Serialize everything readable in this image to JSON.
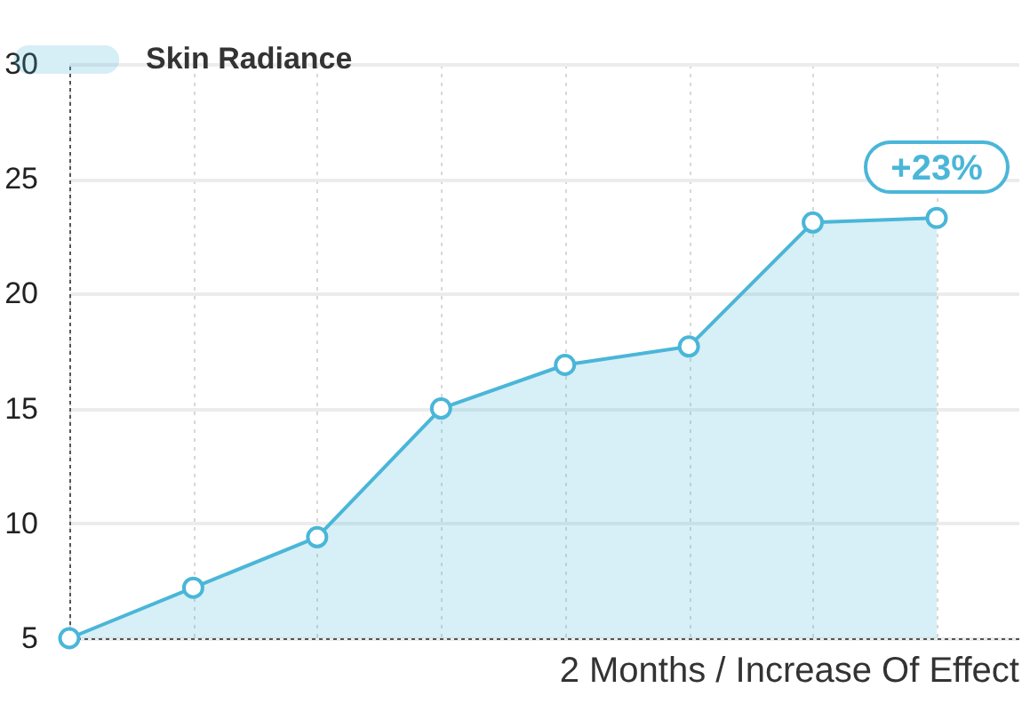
{
  "chart_data": {
    "type": "area",
    "xlabel": "2 Months / Increase Of Effect",
    "categories": [
      null,
      null,
      null,
      null,
      null,
      null,
      null,
      null
    ],
    "series": [
      {
        "name": "Skin Radiance",
        "color": "#4ab6d8",
        "values": [
          5,
          7.2,
          9.4,
          15.0,
          16.9,
          17.7,
          23.1,
          23.3
        ]
      }
    ],
    "annotations": [
      "+23%"
    ],
    "ylim": [
      5,
      30
    ],
    "yticks": [
      5,
      10,
      15,
      20,
      25,
      30
    ],
    "grid": true,
    "legend": "top left",
    "marker": "circle",
    "tick_labels": "y"
  }
}
